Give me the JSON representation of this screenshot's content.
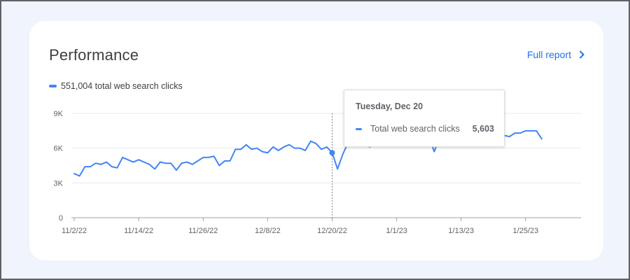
{
  "card": {
    "title": "Performance",
    "full_report_label": "Full report"
  },
  "legend": {
    "label": "551,004 total web search clicks"
  },
  "colors": {
    "series": "#4285f4",
    "link": "#1a73e8",
    "card_bg": "#ffffff",
    "page_bg": "#f0f4fc"
  },
  "icons": {
    "full_report": "chevron-right-icon"
  },
  "tooltip": {
    "date": "Tuesday, Dec 20",
    "series_label": "Total web search clicks",
    "value": "5,603"
  },
  "chart_data": {
    "type": "line",
    "ylim": [
      0,
      9000
    ],
    "y_ticks": [
      0,
      3000,
      6000,
      9000
    ],
    "y_tick_labels": [
      "0",
      "3K",
      "6K",
      "9K"
    ],
    "x_tick_labels": [
      "11/2/22",
      "11/14/22",
      "11/26/22",
      "12/8/22",
      "12/20/22",
      "1/1/23",
      "1/13/23",
      "1/25/23"
    ],
    "x_tick_dates": [
      "2022-11-02",
      "2022-11-14",
      "2022-11-26",
      "2022-12-08",
      "2022-12-20",
      "2023-01-01",
      "2023-01-13",
      "2023-01-25"
    ],
    "grid": true,
    "x_start": "2022-11-02",
    "x_end": "2023-02-03",
    "highlight_date": "2022-12-20",
    "series": [
      {
        "name": "Total web search clicks",
        "values": [
          3800,
          3600,
          4400,
          4400,
          4700,
          4600,
          4800,
          4400,
          4300,
          5200,
          5000,
          4800,
          5000,
          4800,
          4600,
          4200,
          4800,
          4700,
          4700,
          4100,
          4700,
          4800,
          4600,
          4900,
          5200,
          5200,
          5300,
          4500,
          4900,
          4900,
          5900,
          5900,
          6300,
          5900,
          6000,
          5700,
          5600,
          6100,
          5800,
          6100,
          6300,
          6000,
          6000,
          5800,
          6600,
          6400,
          5900,
          6100,
          5603,
          4200,
          5500,
          6500,
          6600,
          6300,
          6600,
          6100,
          6600,
          6200,
          6200,
          7000,
          6800,
          7000,
          7000,
          6900,
          6700,
          6700,
          6900,
          5700,
          7000,
          7000,
          7000,
          6800,
          7100,
          7300,
          6400,
          7700,
          7500,
          7600,
          7500,
          7500,
          7100,
          7000,
          7300,
          7300,
          7500,
          7500,
          7500,
          6800
        ]
      }
    ]
  }
}
